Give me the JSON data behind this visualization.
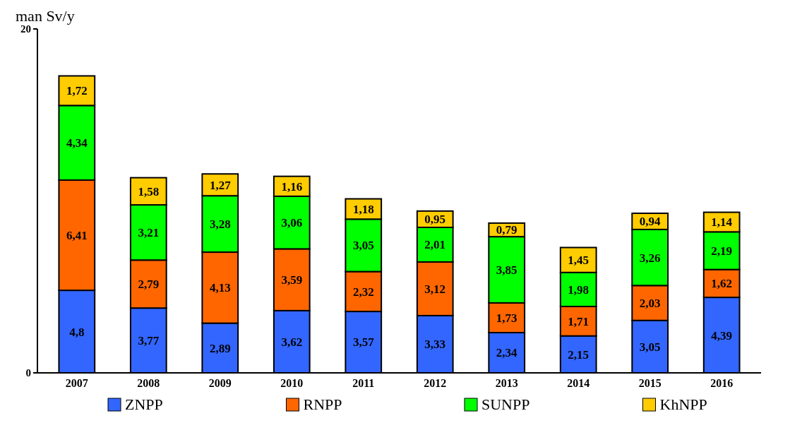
{
  "chart_data": {
    "type": "bar",
    "stacked": true,
    "ylabel": "man Sv/y",
    "categories": [
      "2007",
      "2008",
      "2009",
      "2010",
      "2011",
      "2012",
      "2013",
      "2014",
      "2015",
      "2016"
    ],
    "series": [
      {
        "name": "ZNPP",
        "color": "#3366ff",
        "values": [
          4.8,
          3.77,
          2.89,
          3.62,
          3.57,
          3.33,
          2.34,
          2.15,
          3.05,
          4.39
        ],
        "value_labels": [
          "4,8",
          "3,77",
          "2,89",
          "3,62",
          "3,57",
          "3,33",
          "2,34",
          "2,15",
          "3,05",
          "4,39"
        ]
      },
      {
        "name": "RNPP",
        "color": "#ff6600",
        "values": [
          6.41,
          2.79,
          4.13,
          3.59,
          2.32,
          3.12,
          1.73,
          1.71,
          2.03,
          1.62
        ],
        "value_labels": [
          "6,41",
          "2,79",
          "4,13",
          "3,59",
          "2,32",
          "3,12",
          "1,73",
          "1,71",
          "2,03",
          "1,62"
        ]
      },
      {
        "name": "SUNPP",
        "color": "#00ff00",
        "values": [
          4.34,
          3.21,
          3.28,
          3.06,
          3.05,
          2.01,
          3.85,
          1.98,
          3.26,
          2.19
        ],
        "value_labels": [
          "4,34",
          "3,21",
          "3,28",
          "3,06",
          "3,05",
          "2,01",
          "3,85",
          "1,98",
          "3,26",
          "2,19"
        ]
      },
      {
        "name": "KhNPP",
        "color": "#ffcc00",
        "values": [
          1.72,
          1.58,
          1.27,
          1.16,
          1.18,
          0.95,
          0.79,
          1.45,
          0.94,
          1.14
        ],
        "value_labels": [
          "1,72",
          "1,58",
          "1,27",
          "1,16",
          "1,18",
          "0,95",
          "0,79",
          "1,45",
          "0,94",
          "1,14"
        ]
      }
    ],
    "ylim": [
      0,
      20
    ],
    "yticks": [
      0,
      20
    ],
    "legend": "bottom"
  }
}
